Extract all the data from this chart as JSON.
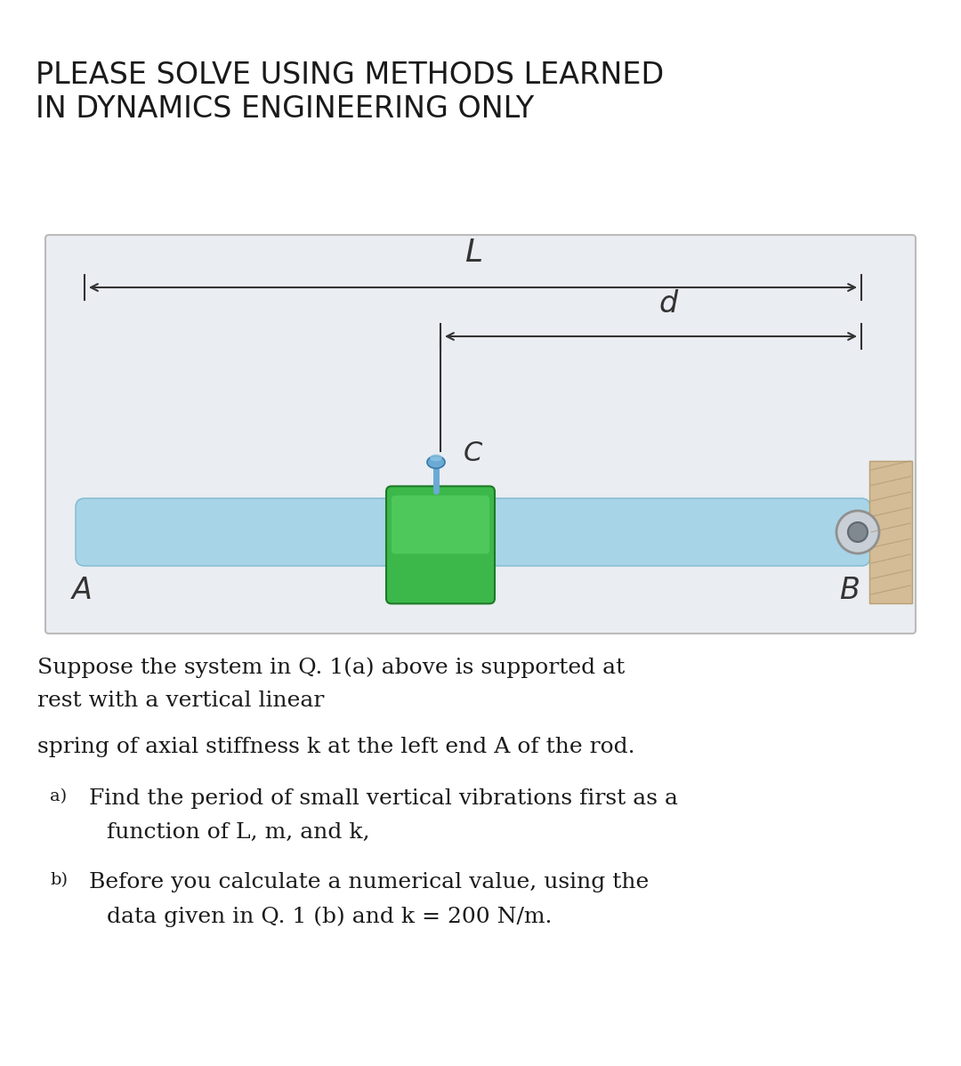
{
  "title_line1": "PLEASE SOLVE USING METHODS LEARNED",
  "title_line2": "IN DYNAMICS ENGINEERING ONLY",
  "title_fontsize": 24,
  "title_color": "#1a1a1a",
  "bg_color": "#ffffff",
  "diagram_bg": "#eaedf2",
  "rod_color": "#a8d4e8",
  "rod_edge": "#80b8d0",
  "mass_green": "#3cb84a",
  "mass_green_light": "#5dd46a",
  "mass_green_dark": "#1e7a28",
  "wall_color": "#d4bc96",
  "wall_edge": "#b8a070",
  "pin_color": "#c0c8d0",
  "pin_dark": "#808890",
  "bolt_color": "#6aaad4",
  "bolt_dark": "#3878a8",
  "text_color": "#1a1a1a",
  "dim_color": "#333333",
  "body_fontsize": 18,
  "small_fontsize": 15,
  "label_fontsize": 20,
  "paragraph1_line1": "Suppose the system in Q. 1(a) above is supported at",
  "paragraph1_line2": "rest with a vertical linear",
  "paragraph2": "spring of axial stiffness k at the left end A of the rod.",
  "item_a": "Find the period of small vertical vibrations first as a",
  "item_a2": "function of L, m, and k,",
  "item_b": "Before you calculate a numerical value, using the",
  "item_b2": "data given in Q. 1 (b) and k = 200 N/m."
}
